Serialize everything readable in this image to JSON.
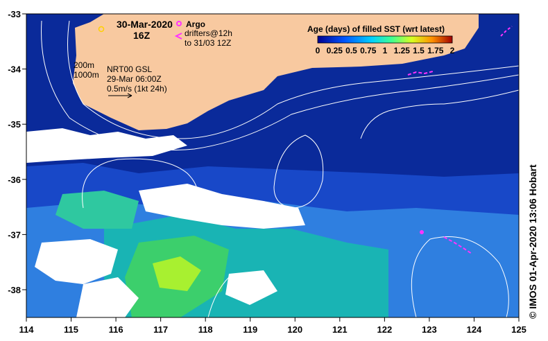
{
  "map": {
    "date": "30-Mar-2020",
    "hour": "16Z",
    "legend_argo": "Argo",
    "legend_drifters_1": "drifters@12h",
    "legend_drifters_2": "to 31/03 12Z",
    "contour_200": "200m",
    "contour_1000": "1000m",
    "model_1": "NRT00 GSL",
    "model_2": "29-Mar 06:00Z",
    "vector_scale": "0.5m/s (1kt 24h)",
    "colorbar_title": "Age (days) of filled SST (wrt latest)",
    "colorbar_ticks": [
      "0",
      "0.25",
      "0.5",
      "0.75",
      "1",
      "1.25",
      "1.5",
      "1.75",
      "2"
    ],
    "credit": "© IMOS 01-Apr-2020 13:06 Hobart",
    "lon_ticks": [
      "114",
      "115",
      "116",
      "117",
      "118",
      "119",
      "120",
      "121",
      "122",
      "123",
      "124",
      "125"
    ],
    "lat_ticks": [
      "-33",
      "-34",
      "-35",
      "-36",
      "-37",
      "-38"
    ],
    "colors": {
      "deep": "#0a2a9a",
      "land": "#f8c9a0",
      "cloud": "#ffffff",
      "accent": "#ff33ff"
    }
  }
}
